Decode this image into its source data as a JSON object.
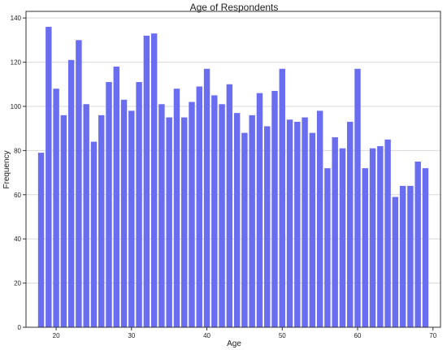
{
  "chart_data": {
    "type": "bar",
    "title": "Age of Respondents",
    "xlabel": "Age",
    "ylabel": "Frequency",
    "xlim": [
      16,
      71
    ],
    "ylim": [
      0,
      143
    ],
    "grid": "horizontal",
    "bar_color": "#6a6df0",
    "x": [
      18,
      19,
      20,
      21,
      22,
      23,
      24,
      25,
      26,
      27,
      28,
      29,
      30,
      31,
      32,
      33,
      34,
      35,
      36,
      37,
      38,
      39,
      40,
      41,
      42,
      43,
      44,
      45,
      46,
      47,
      48,
      49,
      50,
      51,
      52,
      53,
      54,
      55,
      56,
      57,
      58,
      59,
      60,
      61,
      62,
      63,
      64,
      65,
      66,
      67,
      68,
      69
    ],
    "values": [
      79,
      136,
      108,
      96,
      121,
      130,
      101,
      84,
      96,
      111,
      118,
      103,
      98,
      111,
      132,
      133,
      101,
      95,
      108,
      95,
      102,
      109,
      117,
      105,
      101,
      110,
      97,
      88,
      96,
      106,
      91,
      107,
      117,
      94,
      93,
      95,
      88,
      98,
      72,
      86,
      81,
      93,
      117,
      72,
      81,
      82,
      85,
      59,
      64,
      64,
      75,
      72
    ],
    "x_ticks": [
      20,
      30,
      40,
      50,
      60,
      70
    ],
    "y_ticks": [
      0,
      20,
      40,
      60,
      80,
      100,
      120,
      140
    ]
  }
}
